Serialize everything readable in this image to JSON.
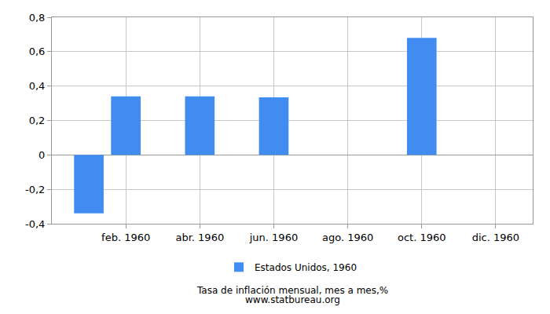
{
  "chart_data": {
    "type": "bar",
    "title": "Tasa de inflación mensual, mes a mes,%",
    "subtitle": "www.statbureau.org",
    "categories": [
      null,
      "feb. 1960",
      null,
      "abr. 1960",
      null,
      "jun. 1960",
      null,
      "ago. 1960",
      null,
      "oct. 1960",
      null,
      "dic. 1960"
    ],
    "series": [
      {
        "name": "Estados Unidos, 1960",
        "color": "#418cf0",
        "values": [
          -0.34,
          0.34,
          0,
          0.34,
          0,
          0.335,
          0,
          0,
          0,
          0.68,
          0,
          0
        ]
      }
    ],
    "ylim": [
      -0.4,
      0.8
    ],
    "yticks": [
      {
        "value": -0.4,
        "label": "-0,4"
      },
      {
        "value": -0.2,
        "label": "-0,2"
      },
      0,
      {
        "value": 0.2,
        "label": "0,2"
      },
      {
        "value": 0.4,
        "label": "0,4"
      },
      {
        "value": 0.6,
        "label": "0,6"
      },
      {
        "value": 0.8,
        "label": "0,8"
      }
    ],
    "grid": true,
    "legend": "bottom"
  }
}
